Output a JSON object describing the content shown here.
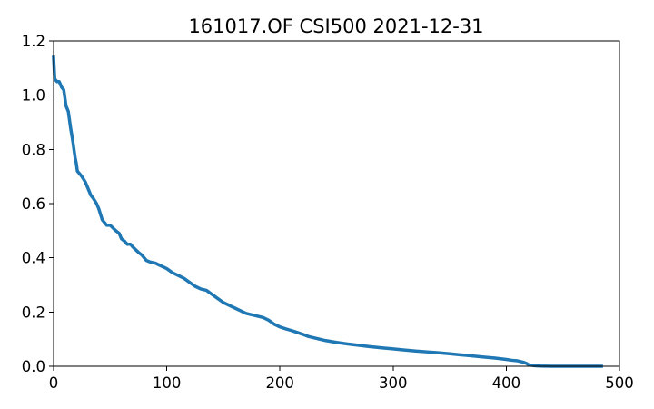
{
  "chart_data": {
    "type": "line",
    "title": "161017.OF CSI500 2021-12-31",
    "xlabel": "",
    "ylabel": "",
    "xlim": [
      0,
      500
    ],
    "ylim": [
      0.0,
      1.2
    ],
    "x_ticks": [
      0,
      100,
      200,
      300,
      400,
      500
    ],
    "y_ticks": [
      0.0,
      0.2,
      0.4,
      0.6,
      0.8,
      1.0,
      1.2
    ],
    "x_tick_labels": [
      "0",
      "100",
      "200",
      "300",
      "400",
      "500"
    ],
    "y_tick_labels": [
      "0.0",
      "0.2",
      "0.4",
      "0.6",
      "0.8",
      "1.0",
      "1.2"
    ],
    "grid": false,
    "legend": "none",
    "series": [
      {
        "color": "#1f77b4",
        "x": [
          0,
          1,
          3,
          5,
          7,
          9,
          11,
          13,
          15,
          17,
          19,
          20,
          21,
          23,
          25,
          28,
          30,
          33,
          35,
          38,
          40,
          43,
          45,
          47,
          50,
          55,
          58,
          60,
          63,
          65,
          68,
          70,
          75,
          78,
          80,
          82,
          85,
          90,
          95,
          100,
          105,
          110,
          115,
          120,
          125,
          130,
          135,
          140,
          145,
          150,
          155,
          160,
          165,
          170,
          175,
          180,
          185,
          190,
          195,
          200,
          205,
          210,
          215,
          220,
          225,
          230,
          240,
          250,
          260,
          270,
          280,
          290,
          300,
          310,
          320,
          330,
          340,
          350,
          360,
          370,
          380,
          390,
          400,
          405,
          410,
          415,
          418,
          420,
          425,
          430,
          440,
          450,
          460,
          470,
          480,
          484
        ],
        "y": [
          1.14,
          1.06,
          1.05,
          1.05,
          1.03,
          1.02,
          0.96,
          0.94,
          0.88,
          0.83,
          0.77,
          0.75,
          0.72,
          0.71,
          0.7,
          0.68,
          0.66,
          0.63,
          0.62,
          0.6,
          0.58,
          0.54,
          0.53,
          0.52,
          0.52,
          0.5,
          0.49,
          0.47,
          0.46,
          0.45,
          0.45,
          0.44,
          0.42,
          0.41,
          0.4,
          0.39,
          0.385,
          0.38,
          0.37,
          0.36,
          0.345,
          0.335,
          0.325,
          0.31,
          0.295,
          0.285,
          0.28,
          0.265,
          0.25,
          0.235,
          0.225,
          0.215,
          0.205,
          0.195,
          0.19,
          0.185,
          0.18,
          0.17,
          0.155,
          0.145,
          0.138,
          0.132,
          0.125,
          0.118,
          0.11,
          0.105,
          0.095,
          0.088,
          0.082,
          0.077,
          0.072,
          0.068,
          0.064,
          0.06,
          0.056,
          0.053,
          0.05,
          0.046,
          0.042,
          0.038,
          0.034,
          0.03,
          0.025,
          0.022,
          0.02,
          0.015,
          0.01,
          0.005,
          0.002,
          0.001,
          0.0,
          0.0,
          0.0,
          0.0,
          0.0,
          0.0
        ]
      }
    ]
  }
}
